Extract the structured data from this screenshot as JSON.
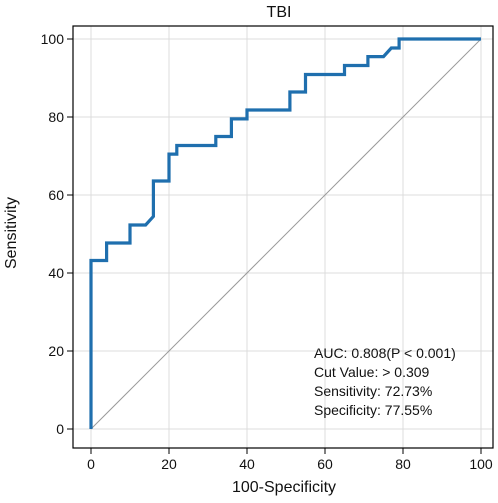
{
  "chart_data": {
    "type": "line",
    "title": "TBI",
    "xlabel": "100-Specificity",
    "ylabel": "Sensitivity",
    "xlim": [
      0,
      100
    ],
    "ylim": [
      0,
      100
    ],
    "xticks": [
      "0",
      "20",
      "40",
      "60",
      "80",
      "100"
    ],
    "yticks": [
      "0",
      "20",
      "40",
      "60",
      "80",
      "100"
    ],
    "grid": true,
    "series": [
      {
        "name": "",
        "color": "#1f6fae",
        "x": [
          0,
          0,
          4,
          4,
          10,
          10,
          14,
          16,
          16,
          20,
          20,
          22,
          22,
          32,
          32,
          36,
          36,
          40,
          40,
          51,
          51,
          55,
          55,
          65,
          65,
          71,
          71,
          75,
          77,
          79,
          79,
          100
        ],
        "y": [
          0,
          43.2,
          43.2,
          47.7,
          47.7,
          52.3,
          52.3,
          54.5,
          63.6,
          63.6,
          70.5,
          70.5,
          72.7,
          72.7,
          75,
          75,
          79.5,
          79.5,
          81.8,
          81.8,
          86.4,
          86.4,
          90.9,
          90.9,
          93.2,
          93.2,
          95.5,
          95.5,
          97.7,
          97.7,
          100,
          100
        ]
      }
    ],
    "reference_line": {
      "color": "#9a9a9a",
      "x": [
        0,
        100
      ],
      "y": [
        0,
        100
      ]
    },
    "annotations": [
      "AUC: 0.808(P < 0.001)",
      "Cut Value: > 0.309",
      "Sensitivity: 72.73%",
      "Specificity: 77.55%"
    ]
  }
}
